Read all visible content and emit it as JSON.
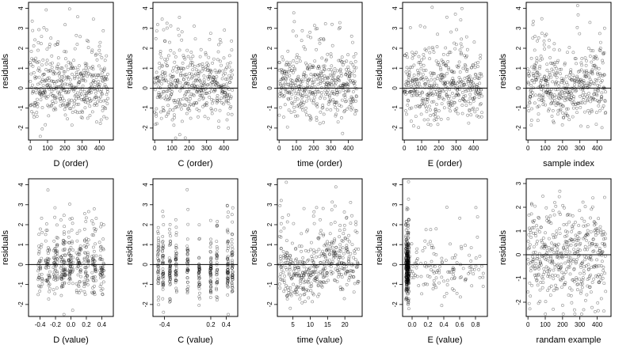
{
  "chart_data": [
    {
      "type": "scatter",
      "xlabel": "D (order)",
      "ylabel": "residuals",
      "xticks": [
        "0",
        "100",
        "200",
        "300",
        "400"
      ],
      "xlim": [
        -10,
        480
      ],
      "yticks": [
        "-2",
        "-1",
        "0",
        "1",
        "2",
        "3",
        "4"
      ],
      "ylim": [
        -2.6,
        4.3
      ],
      "hline": 0,
      "n": 450,
      "pattern": "order",
      "seed": 11
    },
    {
      "type": "scatter",
      "xlabel": "C (order)",
      "ylabel": "residuals",
      "xticks": [
        "0",
        "100",
        "200",
        "300",
        "400"
      ],
      "xlim": [
        -10,
        480
      ],
      "yticks": [
        "-2",
        "-1",
        "0",
        "1",
        "2",
        "3",
        "4"
      ],
      "ylim": [
        -2.6,
        4.3
      ],
      "hline": 0,
      "n": 450,
      "pattern": "order",
      "seed": 23
    },
    {
      "type": "scatter",
      "xlabel": "time (order)",
      "ylabel": "residuals",
      "xticks": [
        "0",
        "100",
        "200",
        "300",
        "400"
      ],
      "xlim": [
        -10,
        480
      ],
      "yticks": [
        "-2",
        "-1",
        "0",
        "1",
        "2",
        "3",
        "4"
      ],
      "ylim": [
        -2.6,
        4.3
      ],
      "hline": 0,
      "n": 450,
      "pattern": "order",
      "seed": 37
    },
    {
      "type": "scatter",
      "xlabel": "E (order)",
      "ylabel": "residuals",
      "xticks": [
        "0",
        "100",
        "200",
        "300",
        "400"
      ],
      "xlim": [
        -10,
        480
      ],
      "yticks": [
        "-2",
        "-1",
        "0",
        "1",
        "2",
        "3",
        "4"
      ],
      "ylim": [
        -2.6,
        4.3
      ],
      "hline": 0,
      "n": 450,
      "pattern": "order",
      "seed": 41
    },
    {
      "type": "scatter",
      "xlabel": "sample index",
      "ylabel": "residuals",
      "xticks": [
        "0",
        "100",
        "200",
        "300",
        "400"
      ],
      "xlim": [
        -10,
        480
      ],
      "yticks": [
        "-2",
        "-1",
        "0",
        "1",
        "2",
        "3",
        "4"
      ],
      "ylim": [
        -2.6,
        4.3
      ],
      "hline": 0,
      "n": 450,
      "pattern": "order",
      "seed": 53
    },
    {
      "type": "scatter",
      "xlabel": "D (value)",
      "ylabel": "residuals",
      "xticks": [
        "-0.4",
        "-0.2",
        "0.0",
        "0.2",
        "0.4"
      ],
      "xlim": [
        -0.55,
        0.55
      ],
      "yticks": [
        "-2",
        "-1",
        "0",
        "1",
        "2",
        "3",
        "4"
      ],
      "ylim": [
        -2.6,
        4.3
      ],
      "hline": 0,
      "n": 450,
      "pattern": "value",
      "seed": 61
    },
    {
      "type": "scatter",
      "xlabel": "C (value)",
      "ylabel": "residuals",
      "xticks": [
        "-0.4",
        "0.2",
        "0.4"
      ],
      "xlim": [
        -0.55,
        0.55
      ],
      "yticks": [
        "-2",
        "-1",
        "0",
        "1",
        "2",
        "3",
        "4"
      ],
      "ylim": [
        -2.6,
        4.3
      ],
      "hline": 0,
      "n": 450,
      "pattern": "columns",
      "seed": 71
    },
    {
      "type": "scatter",
      "xlabel": "time (value)",
      "ylabel": "residuals",
      "xticks": [
        "5",
        "10",
        "15",
        "20"
      ],
      "xlim": [
        0.5,
        25
      ],
      "yticks": [
        "-2",
        "-1",
        "0",
        "1",
        "2",
        "3",
        "4"
      ],
      "ylim": [
        -2.6,
        4.3
      ],
      "hline": 0,
      "n": 450,
      "pattern": "time",
      "seed": 83
    },
    {
      "type": "scatter",
      "xlabel": "E (value)",
      "ylabel": "residuals",
      "xticks": [
        "0.0",
        "0.2",
        "0.4",
        "0.6",
        "0.8"
      ],
      "xlim": [
        -0.12,
        0.95
      ],
      "yticks": [
        "-2",
        "-1",
        "0",
        "1",
        "2",
        "3",
        "4"
      ],
      "ylim": [
        -2.6,
        4.3
      ],
      "hline": 0,
      "n": 450,
      "pattern": "leftcluster",
      "seed": 97
    },
    {
      "type": "scatter",
      "xlabel": "randam example",
      "ylabel": "residuals",
      "xticks": [
        "0",
        "100",
        "200",
        "300",
        "400"
      ],
      "xlim": [
        -10,
        480
      ],
      "yticks": [
        "-2",
        "-1",
        "0",
        "1",
        "2",
        "3"
      ],
      "ylim": [
        -2.6,
        3.2
      ],
      "hline": 0,
      "n": 450,
      "pattern": "random",
      "seed": 101
    }
  ]
}
